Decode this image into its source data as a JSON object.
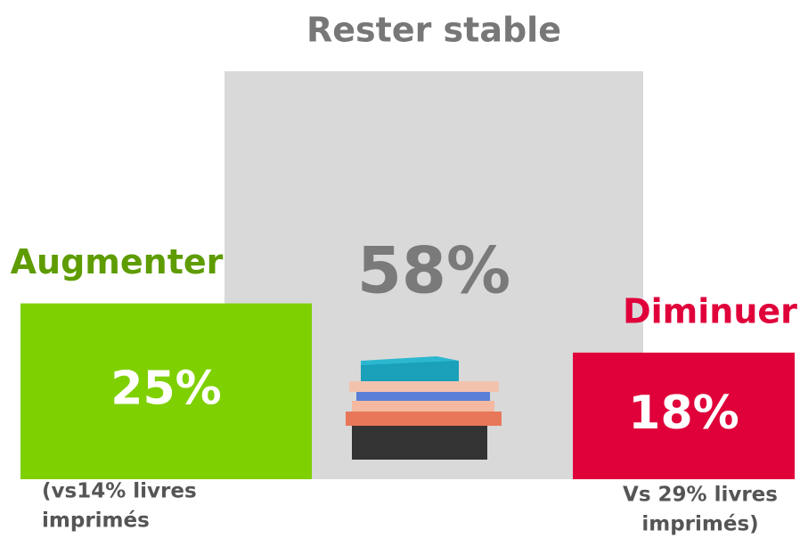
{
  "chart_data": {
    "type": "bar",
    "categories": [
      "Augmenter",
      "Rester stable",
      "Diminuer"
    ],
    "values": [
      25,
      58,
      18
    ],
    "value_labels": [
      "25%",
      "58%",
      "18%"
    ],
    "colors": [
      "#7fd000",
      "#d9d9d9",
      "#e0003a"
    ],
    "category_label_colors": [
      "#5e9c00",
      "#777777",
      "#e0003a"
    ],
    "value_label_colors": [
      "#ffffff",
      "#7a7a7a",
      "#ffffff"
    ],
    "ylim": [
      0,
      58
    ],
    "annotations": [
      [
        "(vs14% livres",
        "imprimés"
      ],
      [
        "Vs 29% livres",
        "imprimés)"
      ]
    ]
  }
}
